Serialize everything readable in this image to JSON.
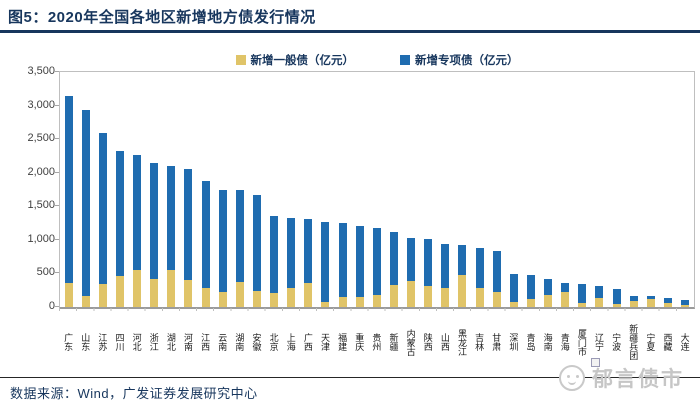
{
  "header": {
    "title": "图5：2020年全国各地区新增地方债发行情况"
  },
  "legend": [
    {
      "label": "新增一般债（亿元）",
      "color": "#E0C468"
    },
    {
      "label": "新增专项债（亿元）",
      "color": "#1F6CB0"
    }
  ],
  "footer": {
    "source": "数据来源：Wind，广发证券发展研究中心"
  },
  "watermark": {
    "text": "郁言债市"
  },
  "chart_data": {
    "type": "bar",
    "stacked": true,
    "title": "2020年全国各地区新增地方债发行情况",
    "xlabel": "",
    "ylabel": "亿元",
    "ylim": [
      0,
      3500
    ],
    "ytick_step": 500,
    "yticks": [
      "0",
      "500",
      "1,000",
      "1,500",
      "2,000",
      "2,500",
      "3,000",
      "3,500"
    ],
    "grid": false,
    "legend_position": "top",
    "categories": [
      "广东",
      "山东",
      "江苏",
      "四川",
      "河北",
      "浙江",
      "湖北",
      "河南",
      "江西",
      "云南",
      "湖南",
      "安徽",
      "北京",
      "上海",
      "广西",
      "天津",
      "福建",
      "重庆",
      "贵州",
      "新疆",
      "内蒙古",
      "陕西",
      "山西",
      "黑龙江",
      "吉林",
      "甘肃",
      "深圳",
      "青岛",
      "海南",
      "青海",
      "厦门市",
      "辽宁",
      "宁波",
      "新疆兵团",
      "宁夏",
      "西藏",
      "大连"
    ],
    "series": [
      {
        "name": "新增一般债（亿元）",
        "color": "#E0C468",
        "values": [
          355,
          170,
          345,
          455,
          550,
          410,
          545,
          405,
          285,
          225,
          375,
          240,
          210,
          285,
          355,
          80,
          150,
          150,
          180,
          330,
          390,
          310,
          285,
          470,
          280,
          220,
          75,
          115,
          180,
          220,
          55,
          130,
          40,
          85,
          120,
          55,
          37
        ]
      },
      {
        "name": "新增专项债（亿元）",
        "color": "#1F6CB0",
        "values": [
          2785,
          2770,
          2245,
          1875,
          1720,
          1740,
          1555,
          1650,
          1595,
          1525,
          1365,
          1430,
          1140,
          1045,
          950,
          1185,
          1100,
          1055,
          990,
          780,
          645,
          705,
          660,
          455,
          600,
          610,
          420,
          365,
          230,
          140,
          285,
          190,
          225,
          85,
          42,
          77,
          65
        ]
      }
    ]
  }
}
